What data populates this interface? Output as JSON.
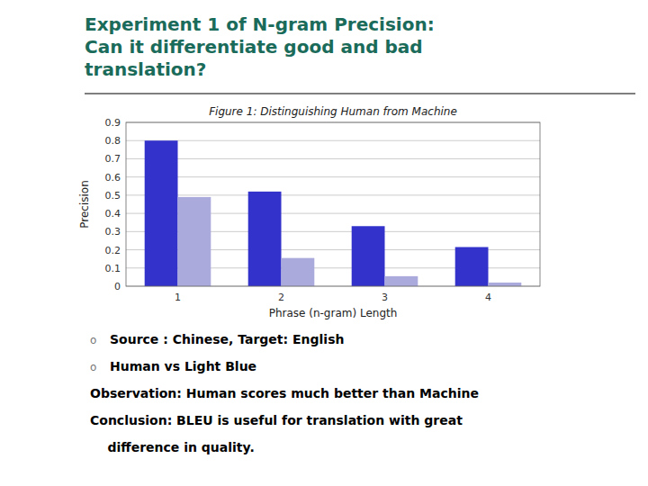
{
  "heading_lines": [
    "Experiment 1 of N-gram Precision:",
    "Can it differentiate good and bad",
    "translation?"
  ],
  "heading_color": "#1a6b5a",
  "bullet": "o",
  "bullet_items": [
    "Source : Chinese, Target: English",
    "Human vs Light Blue"
  ],
  "body_lines": [
    "Observation: Human scores much better than Machine",
    "Conclusion: BLEU is useful for translation with great",
    "    difference in quality."
  ],
  "chart_data": {
    "type": "bar",
    "title": "Figure 1: Distinguishing Human from Machine",
    "x_label": "Phrase (n-gram) Length",
    "y_label": "Precision",
    "categories": [
      "1",
      "2",
      "3",
      "4"
    ],
    "series": [
      {
        "color": "#3333cc",
        "values": [
          0.8,
          0.52,
          0.33,
          0.215
        ]
      },
      {
        "color": "#aaaadd",
        "values": [
          0.49,
          0.155,
          0.055,
          0.02
        ]
      }
    ],
    "ylim": [
      0,
      0.9
    ],
    "yticks": [
      0,
      0.1,
      0.2,
      0.3,
      0.4,
      0.5,
      0.6,
      0.7,
      0.8,
      0.9
    ],
    "grid": true
  }
}
